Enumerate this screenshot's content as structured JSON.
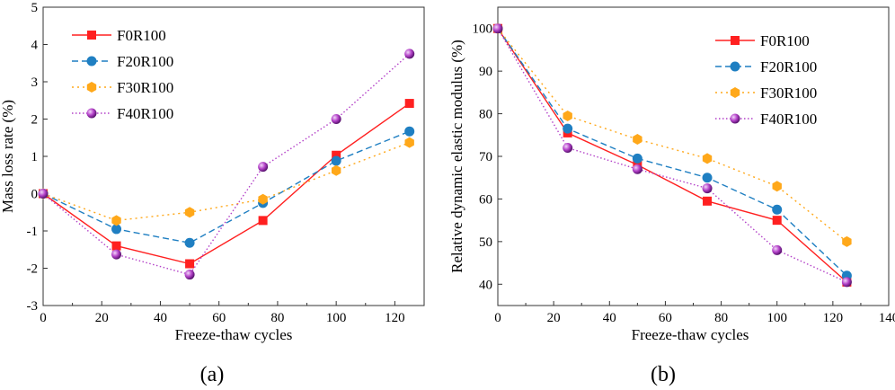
{
  "chart_data": [
    {
      "type": "line",
      "panel_label": "(a)",
      "title": "",
      "xlabel": "Freeze-thaw cycles",
      "ylabel": "Mass loss rate (%)",
      "xlim": [
        0,
        130
      ],
      "ylim": [
        -3,
        5
      ],
      "xticks": [
        0,
        20,
        40,
        60,
        80,
        100,
        120
      ],
      "yticks": [
        -3,
        -2,
        -1,
        0,
        1,
        2,
        3,
        4,
        5
      ],
      "x": [
        0,
        25,
        50,
        75,
        100,
        125
      ],
      "legend_position": "top-left",
      "series": [
        {
          "name": "F0R100",
          "values": [
            0,
            -1.4,
            -1.88,
            -0.72,
            1.03,
            2.42
          ]
        },
        {
          "name": "F20R100",
          "values": [
            0,
            -0.95,
            -1.32,
            -0.25,
            0.88,
            1.67
          ]
        },
        {
          "name": "F30R100",
          "values": [
            0,
            -0.72,
            -0.5,
            -0.15,
            0.62,
            1.37
          ]
        },
        {
          "name": "F40R100",
          "values": [
            0,
            -1.63,
            -2.17,
            0.72,
            2.0,
            3.75
          ]
        }
      ]
    },
    {
      "type": "line",
      "panel_label": "(b)",
      "title": "",
      "xlabel": "Freeze-thaw cycles",
      "ylabel": "Relative dynamic elastic modulus (%)",
      "xlim": [
        0,
        140
      ],
      "ylim": [
        35,
        105
      ],
      "xticks": [
        0,
        20,
        40,
        60,
        80,
        100,
        120,
        140
      ],
      "yticks": [
        40,
        50,
        60,
        70,
        80,
        90,
        100
      ],
      "x": [
        0,
        25,
        50,
        75,
        100,
        125
      ],
      "legend_position": "top-right",
      "series": [
        {
          "name": "F0R100",
          "values": [
            100,
            75.5,
            68,
            59.5,
            55,
            40.5
          ]
        },
        {
          "name": "F20R100",
          "values": [
            100,
            76.5,
            69.5,
            65,
            57.5,
            42
          ]
        },
        {
          "name": "F30R100",
          "values": [
            100,
            79.5,
            74,
            69.5,
            63,
            50
          ]
        },
        {
          "name": "F40R100",
          "values": [
            100,
            72,
            67,
            62.5,
            48,
            40.5
          ]
        }
      ]
    }
  ]
}
